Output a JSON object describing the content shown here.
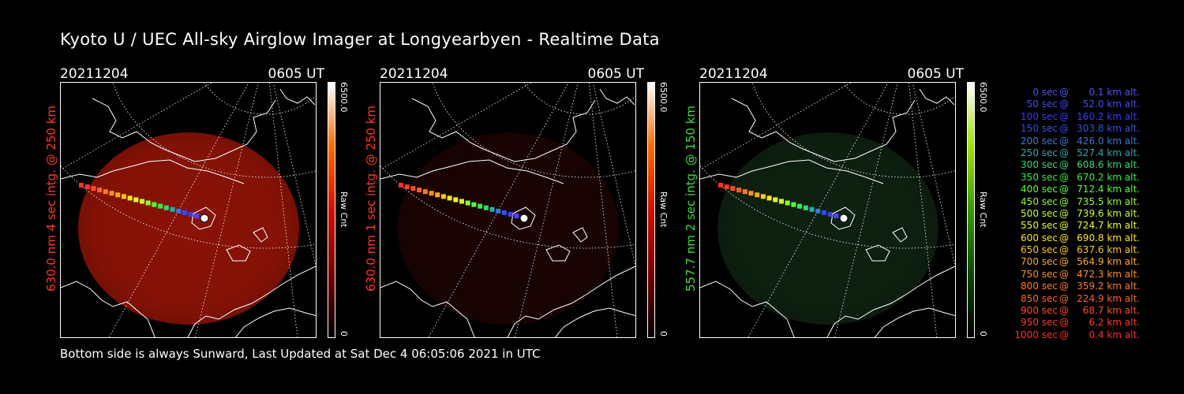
{
  "title": "Kyoto U / UEC All-sky Airglow Imager at Longyearbyen - Realtime Data",
  "footer": "Bottom side is always Sunward, Last Updated at Sat Dec  4 06:05:06 2021 in UTC",
  "panels": [
    {
      "date": "20211204",
      "time": "0605 UT",
      "ylabel": "630.0 nm 4 sec intg. @ 250 km",
      "ylabel_color": "#ff3a1e",
      "colorbar_max": "6500.0",
      "colorbar_min": "0",
      "colorbar_label": "Raw Cnt",
      "color_scale": [
        "#000000",
        "#7a0000",
        "#d01000",
        "#ff6a00",
        "#ffffff"
      ],
      "image_color": "#a21608",
      "image_brightness": 0.85
    },
    {
      "date": "20211204",
      "time": "0605 UT",
      "ylabel": "630.0 nm 1 sec intg. @ 250 km",
      "ylabel_color": "#ff3a1e",
      "colorbar_max": "6500.0",
      "colorbar_min": "0",
      "colorbar_label": "Raw Cnt",
      "color_scale": [
        "#000000",
        "#7a0000",
        "#d01000",
        "#ff6a00",
        "#ffffff"
      ],
      "image_color": "#3a0705",
      "image_brightness": 0.45
    },
    {
      "date": "20211204",
      "time": "0605 UT",
      "ylabel": "557.7 nm 2 sec intg. @ 150 km",
      "ylabel_color": "#3edc3e",
      "colorbar_max": "6500.0",
      "colorbar_min": "0",
      "colorbar_label": "Raw Cnt",
      "color_scale": [
        "#000000",
        "#0a4a00",
        "#3a9a00",
        "#9ee000",
        "#ffffff"
      ],
      "image_color": "#17361a",
      "image_brightness": 0.6
    }
  ],
  "legend": [
    {
      "sec": "0 sec",
      "km": "0.1 km alt.",
      "color": "#5050ff"
    },
    {
      "sec": "50 sec",
      "km": "52.0 km alt.",
      "color": "#4646ff"
    },
    {
      "sec": "100 sec",
      "km": "160.2 km alt.",
      "color": "#3a3aff"
    },
    {
      "sec": "150 sec",
      "km": "303.8 km alt.",
      "color": "#3050f0"
    },
    {
      "sec": "200 sec",
      "km": "426.0 km alt.",
      "color": "#3a78d8"
    },
    {
      "sec": "250 sec",
      "km": "527.4 km alt.",
      "color": "#2ea8b0"
    },
    {
      "sec": "300 sec",
      "km": "608.6 km alt.",
      "color": "#34d870"
    },
    {
      "sec": "350 sec",
      "km": "670.2 km alt.",
      "color": "#30f040"
    },
    {
      "sec": "400 sec",
      "km": "712.4 km alt.",
      "color": "#56ff30"
    },
    {
      "sec": "450 sec",
      "km": "735.5 km alt.",
      "color": "#92ff2a"
    },
    {
      "sec": "500 sec",
      "km": "739.6 km alt.",
      "color": "#c8ff22"
    },
    {
      "sec": "550 sec",
      "km": "724.7 km alt.",
      "color": "#ecff1a"
    },
    {
      "sec": "600 sec",
      "km": "690.8 km alt.",
      "color": "#ffe41a"
    },
    {
      "sec": "650 sec",
      "km": "637.6 km alt.",
      "color": "#ffc81c"
    },
    {
      "sec": "700 sec",
      "km": "564.9 km alt.",
      "color": "#ffaa1e"
    },
    {
      "sec": "750 sec",
      "km": "472.3 km alt.",
      "color": "#ff9020"
    },
    {
      "sec": "800 sec",
      "km": "359.2 km alt.",
      "color": "#ff7a22"
    },
    {
      "sec": "850 sec",
      "km": "224.9 km alt.",
      "color": "#ff6224"
    },
    {
      "sec": "900 sec",
      "km": "68.7 km alt.",
      "color": "#ff4a26"
    },
    {
      "sec": "950 sec",
      "km": "6.2 km alt.",
      "color": "#ff3a26"
    },
    {
      "sec": "1000 sec",
      "km": "0.4 km alt.",
      "color": "#ff3026"
    }
  ]
}
